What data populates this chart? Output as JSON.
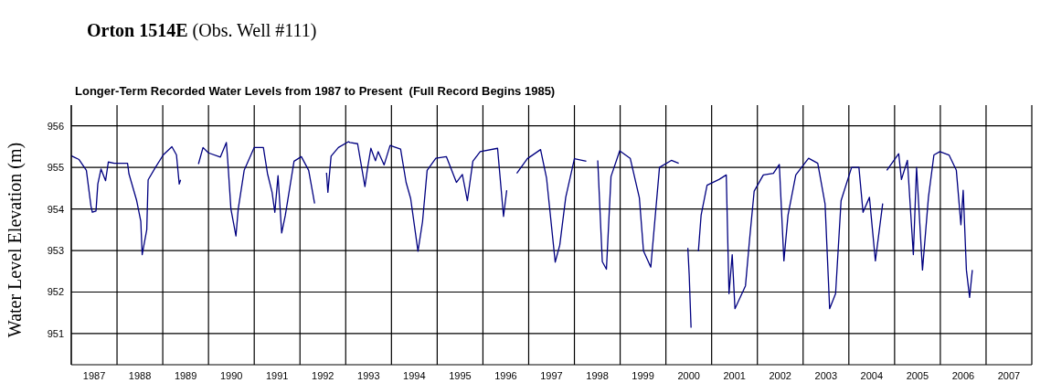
{
  "chart_data": {
    "type": "line",
    "title": "Orton 1514E (Obs. Well #111)",
    "subtitle": "Longer-Term Recorded Water Levels from 1987 to Present  (Full Record Begins 1985)",
    "ylabel": "Water Level Elevation (m)",
    "x": [
      1987.0,
      1987.17,
      1987.33,
      1987.43,
      1987.46,
      1987.54,
      1987.58,
      1987.65,
      1987.75,
      1987.81,
      1987.94,
      1988.23,
      1988.26,
      1988.43,
      1988.52,
      1988.55,
      1988.65,
      1988.68,
      1988.84,
      1989.01,
      1989.2,
      1989.3,
      1989.36,
      1989.39,
      1989.6,
      1989.78,
      1989.88,
      1990.0,
      1990.26,
      1990.39,
      1990.42,
      1990.49,
      1990.6,
      1990.65,
      1990.78,
      1991.0,
      1991.2,
      1991.29,
      1991.39,
      1991.45,
      1991.52,
      1991.6,
      1991.68,
      1991.87,
      1992.03,
      1992.19,
      1992.32,
      1992.45,
      1992.58,
      1992.61,
      1992.68,
      1992.84,
      1993.06,
      1993.09,
      1993.26,
      1993.42,
      1993.48,
      1993.55,
      1993.65,
      1993.71,
      1993.84,
      1993.97,
      1994.2,
      1994.32,
      1994.42,
      1994.58,
      1994.68,
      1994.78,
      1994.97,
      1995.2,
      1995.42,
      1995.55,
      1995.66,
      1995.78,
      1995.94,
      1996.32,
      1996.45,
      1996.52,
      1996.6,
      1996.74,
      1996.97,
      1997.26,
      1997.39,
      1997.58,
      1997.68,
      1997.81,
      1998.0,
      1998.26,
      1998.35,
      1998.51,
      1998.61,
      1998.7,
      1998.8,
      1998.99,
      1999.22,
      1999.42,
      1999.51,
      1999.67,
      1999.86,
      2000.12,
      2000.28,
      2000.35,
      2000.48,
      2000.51,
      2000.55,
      2000.62,
      2000.71,
      2000.77,
      2000.9,
      2001.16,
      2001.32,
      2001.35,
      2001.38,
      2001.45,
      2001.51,
      2001.74,
      2001.83,
      2001.93,
      2002.13,
      2002.35,
      2002.48,
      2002.58,
      2002.67,
      2002.84,
      2003.12,
      2003.32,
      2003.48,
      2003.58,
      2003.71,
      2003.83,
      2004.06,
      2004.22,
      2004.31,
      2004.45,
      2004.58,
      2004.74,
      2004.8,
      2004.83,
      2005.09,
      2005.15,
      2005.28,
      2005.41,
      2005.48,
      2005.61,
      2005.74,
      2005.86,
      2005.99,
      2006.19,
      2006.35,
      2006.45,
      2006.5,
      2006.57,
      2006.64,
      2006.7
    ],
    "series": [
      {
        "color": "#000080",
        "values": [
          955.28,
          955.19,
          954.93,
          954.07,
          953.92,
          953.95,
          954.6,
          954.96,
          954.68,
          955.13,
          955.1,
          955.1,
          954.85,
          954.2,
          953.7,
          952.9,
          953.5,
          954.7,
          955.0,
          955.3,
          955.5,
          955.3,
          954.6,
          954.7,
          null,
          955.08,
          955.48,
          955.35,
          955.25,
          955.6,
          955.18,
          954.0,
          953.35,
          954.0,
          954.93,
          955.48,
          955.48,
          954.85,
          954.4,
          953.92,
          954.8,
          953.42,
          953.85,
          955.15,
          955.26,
          954.93,
          954.13,
          null,
          954.87,
          954.4,
          955.27,
          955.48,
          955.62,
          955.6,
          955.57,
          954.54,
          955.0,
          955.46,
          955.16,
          955.38,
          955.06,
          955.53,
          955.44,
          954.64,
          954.25,
          952.98,
          953.7,
          954.93,
          955.22,
          955.26,
          954.64,
          954.83,
          954.2,
          955.15,
          955.38,
          955.46,
          953.82,
          954.45,
          null,
          954.86,
          955.21,
          955.43,
          954.75,
          952.72,
          953.13,
          954.28,
          955.21,
          955.15,
          null,
          955.17,
          952.73,
          952.55,
          954.78,
          955.4,
          955.22,
          954.27,
          952.99,
          952.6,
          955.0,
          955.17,
          955.1,
          null,
          953.06,
          952.4,
          951.14,
          null,
          952.98,
          953.85,
          954.57,
          954.71,
          954.82,
          953.37,
          951.96,
          952.9,
          951.6,
          952.15,
          953.27,
          954.43,
          954.82,
          954.86,
          955.07,
          952.75,
          953.85,
          954.82,
          955.22,
          955.1,
          954.12,
          951.6,
          951.96,
          954.2,
          955.0,
          955.0,
          953.92,
          954.28,
          952.75,
          954.13,
          null,
          954.93,
          955.33,
          954.71,
          955.17,
          952.9,
          955.0,
          952.53,
          954.28,
          955.3,
          955.38,
          955.3,
          954.93,
          953.62,
          954.45,
          952.53,
          951.87,
          952.53
        ]
      }
    ],
    "xlim": [
      1987,
      2008
    ],
    "xticks": [
      {
        "value": 1987,
        "label": null
      },
      {
        "value": 1987.5,
        "label": "1987"
      },
      {
        "value": 1988,
        "label": null
      },
      {
        "value": 1988.5,
        "label": "1988"
      },
      {
        "value": 1989,
        "label": null
      },
      {
        "value": 1989.5,
        "label": "1989"
      },
      {
        "value": 1990,
        "label": null
      },
      {
        "value": 1990.5,
        "label": "1990"
      },
      {
        "value": 1991,
        "label": null
      },
      {
        "value": 1991.5,
        "label": "1991"
      },
      {
        "value": 1992,
        "label": null
      },
      {
        "value": 1992.5,
        "label": "1992"
      },
      {
        "value": 1993,
        "label": null
      },
      {
        "value": 1993.5,
        "label": "1993"
      },
      {
        "value": 1994,
        "label": null
      },
      {
        "value": 1994.5,
        "label": "1994"
      },
      {
        "value": 1995,
        "label": null
      },
      {
        "value": 1995.5,
        "label": "1995"
      },
      {
        "value": 1996,
        "label": null
      },
      {
        "value": 1996.5,
        "label": "1996"
      },
      {
        "value": 1997,
        "label": null
      },
      {
        "value": 1997.5,
        "label": "1997"
      },
      {
        "value": 1998,
        "label": null
      },
      {
        "value": 1998.5,
        "label": "1998"
      },
      {
        "value": 1999,
        "label": null
      },
      {
        "value": 1999.5,
        "label": "1999"
      },
      {
        "value": 2000,
        "label": null
      },
      {
        "value": 2000.5,
        "label": "2000"
      },
      {
        "value": 2001,
        "label": null
      },
      {
        "value": 2001.5,
        "label": "2001"
      },
      {
        "value": 2002,
        "label": null
      },
      {
        "value": 2002.5,
        "label": "2002"
      },
      {
        "value": 2003,
        "label": null
      },
      {
        "value": 2003.5,
        "label": "2003"
      },
      {
        "value": 2004,
        "label": null
      },
      {
        "value": 2004.5,
        "label": "2004"
      },
      {
        "value": 2005,
        "label": null
      },
      {
        "value": 2005.5,
        "label": "2005"
      },
      {
        "value": 2006,
        "label": null
      },
      {
        "value": 2006.5,
        "label": "2006"
      },
      {
        "value": 2007,
        "label": null
      },
      {
        "value": 2007.5,
        "label": "2007"
      },
      {
        "value": 2008,
        "label": null
      }
    ],
    "ylim": [
      950.25,
      956.5
    ],
    "yticks": [
      951,
      952,
      953,
      954,
      955,
      956
    ],
    "grid": true,
    "legend": false,
    "marker": "none",
    "line_style": "solid"
  }
}
